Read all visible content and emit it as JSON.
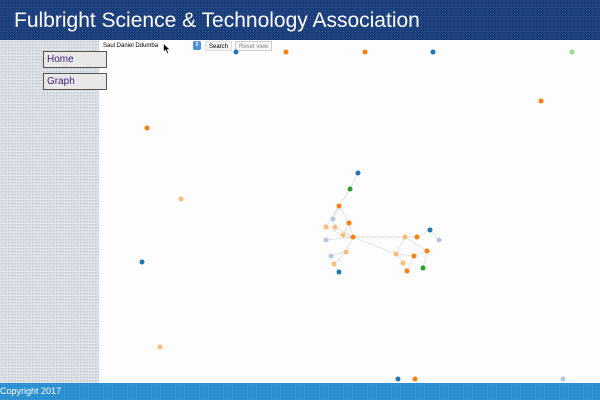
{
  "header": {
    "title": "Fulbright Science & Technology Association"
  },
  "nav": {
    "home_label": "Home",
    "graph_label": "Graph"
  },
  "search": {
    "value": "Saul Daniel Ddumba",
    "dropdown_icon": "chevron-updown-icon",
    "search_label": "Search",
    "reset_label": "Reset view"
  },
  "footer": {
    "copyright": "Copyright 2017"
  },
  "colors": {
    "header_bg": "#1a3d7c",
    "footer_bg": "#2a8fd0",
    "node_blue": "#1f77b4",
    "node_orange": "#ff7f0e",
    "node_light_orange": "#ffbb78",
    "node_light_blue": "#aec7e8",
    "node_green": "#2ca02c",
    "node_light_green": "#98df8a",
    "link": "#bbbbbb"
  },
  "graph": {
    "node_count": 38,
    "link_count": 30
  }
}
